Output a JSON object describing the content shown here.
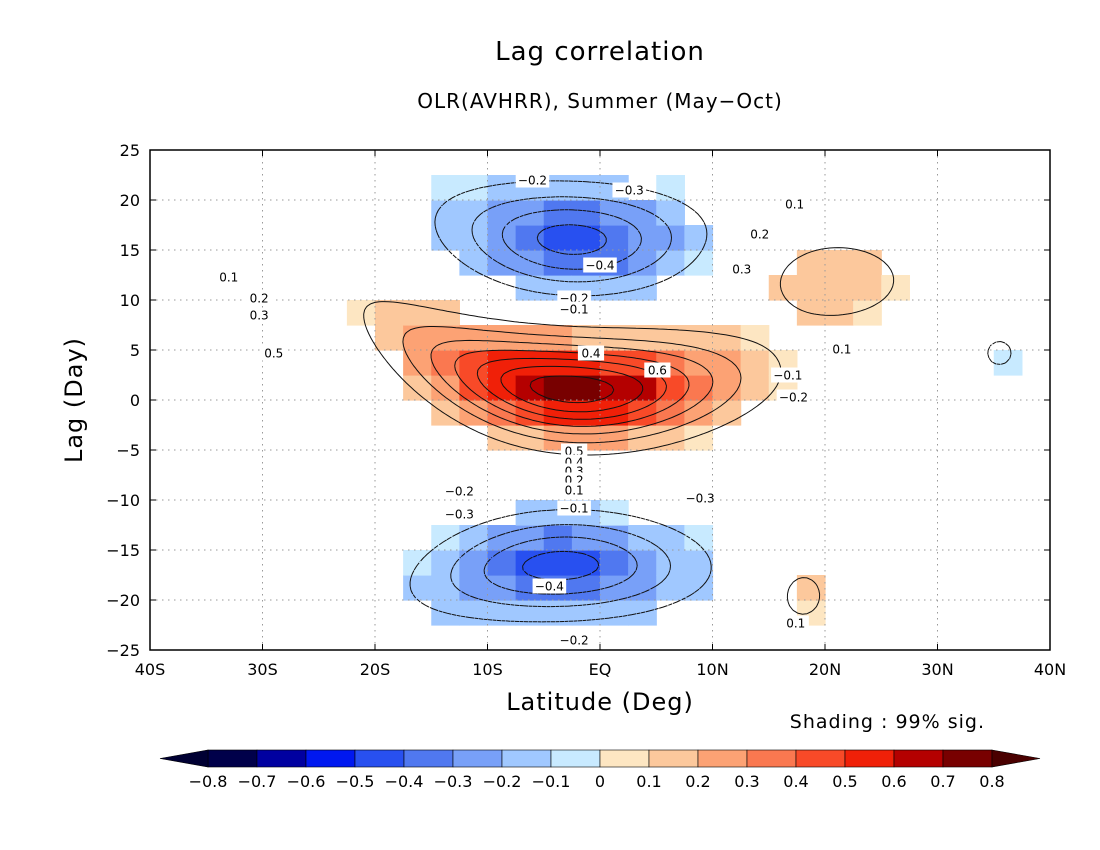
{
  "chart_data": {
    "type": "heatmap",
    "title": "Lag correlation",
    "subtitle": "OLR(AVHRR), Summer (May−Oct)",
    "xlabel": "Latitude (Deg)",
    "ylabel": "Lag (Day)",
    "xlim": [
      -40,
      40
    ],
    "ylim": [
      -25,
      25
    ],
    "x_ticks": [
      {
        "value": -40,
        "label": "40S"
      },
      {
        "value": -30,
        "label": "30S"
      },
      {
        "value": -20,
        "label": "20S"
      },
      {
        "value": -10,
        "label": "10S"
      },
      {
        "value": 0,
        "label": "EQ"
      },
      {
        "value": 10,
        "label": "10N"
      },
      {
        "value": 20,
        "label": "20N"
      },
      {
        "value": 30,
        "label": "30N"
      },
      {
        "value": 40,
        "label": "40N"
      }
    ],
    "y_ticks": [
      {
        "value": 25,
        "label": "25"
      },
      {
        "value": 20,
        "label": "20"
      },
      {
        "value": 15,
        "label": "15"
      },
      {
        "value": 10,
        "label": "10"
      },
      {
        "value": 5,
        "label": "5"
      },
      {
        "value": 0,
        "label": "0"
      },
      {
        "value": -5,
        "label": "−5"
      },
      {
        "value": -10,
        "label": "−10"
      },
      {
        "value": -15,
        "label": "−15"
      },
      {
        "value": -20,
        "label": "−20"
      },
      {
        "value": -25,
        "label": "−25"
      }
    ],
    "grid": true,
    "shading_note": "Shading : 99% sig.",
    "colorbar": {
      "bounds": [
        -0.8,
        -0.7,
        -0.6,
        -0.5,
        -0.4,
        -0.3,
        -0.2,
        -0.1,
        0,
        0.1,
        0.2,
        0.3,
        0.4,
        0.5,
        0.6,
        0.7,
        0.8
      ],
      "labels": [
        "−0.8",
        "−0.7",
        "−0.6",
        "−0.5",
        "−0.4",
        "−0.3",
        "−0.2",
        "−0.1",
        "0",
        "0.1",
        "0.2",
        "0.3",
        "0.4",
        "0.5",
        "0.6",
        "0.7",
        "0.8"
      ],
      "colors": [
        "#00004a",
        "#0000a0",
        "#0018f0",
        "#2850f0",
        "#5078f0",
        "#78a0f8",
        "#a0c8ff",
        "#c8eaff",
        "#fde6c2",
        "#fcc89c",
        "#fca274",
        "#fa7850",
        "#f84a28",
        "#f02008",
        "#b40000",
        "#780000"
      ],
      "under_color": "#000033",
      "over_color": "#4a0000"
    },
    "features": [
      {
        "kind": "positive",
        "name": "main positive band",
        "center_lat": -2,
        "center_lag": 0,
        "peak_value": 0.7,
        "contour_levels": [
          0.1,
          0.2,
          0.3,
          0.4,
          0.5,
          0.6
        ]
      },
      {
        "kind": "negative",
        "name": "upper negative lobe",
        "center_lat": -3,
        "center_lag": 16,
        "peak_value": -0.4,
        "contour_levels": [
          -0.1,
          -0.2,
          -0.3,
          -0.4
        ]
      },
      {
        "kind": "negative",
        "name": "lower negative lobe",
        "center_lat": -3,
        "center_lag": -17,
        "peak_value": -0.4,
        "contour_levels": [
          -0.1,
          -0.2,
          -0.3,
          -0.4
        ]
      },
      {
        "kind": "positive",
        "name": "small positive cell",
        "center_lat": 18,
        "center_lag": -19,
        "peak_value": 0.1,
        "contour_levels": [
          0.1
        ]
      }
    ],
    "contour_labels": [
      {
        "lat": -33.0,
        "lag": 12.3,
        "text": "0.1"
      },
      {
        "lat": -30.3,
        "lag": 10.2,
        "text": "0.2"
      },
      {
        "lat": -30.3,
        "lag": 8.5,
        "text": "0.3"
      },
      {
        "lat": -29.0,
        "lag": 4.7,
        "text": "0.5"
      },
      {
        "lat": -0.8,
        "lag": 4.7,
        "text": "0.4"
      },
      {
        "lat": 5.1,
        "lag": 3.0,
        "text": "0.6"
      },
      {
        "lat": -2.3,
        "lag": -5.1,
        "text": "0.5"
      },
      {
        "lat": -2.3,
        "lag": -6.2,
        "text": "0.4"
      },
      {
        "lat": -2.3,
        "lag": -7.1,
        "text": "0.3"
      },
      {
        "lat": -2.3,
        "lag": -8.0,
        "text": "0.2"
      },
      {
        "lat": -2.3,
        "lag": -9.0,
        "text": "0.1"
      },
      {
        "lat": 17.3,
        "lag": 19.6,
        "text": "0.1"
      },
      {
        "lat": 14.2,
        "lag": 16.6,
        "text": "0.2"
      },
      {
        "lat": 12.6,
        "lag": 13.1,
        "text": "0.3"
      },
      {
        "lat": 21.5,
        "lag": 5.1,
        "text": "0.1"
      },
      {
        "lat": 17.4,
        "lag": -22.3,
        "text": "0.1"
      },
      {
        "lat": -6.0,
        "lag": 22.0,
        "text": "−0.2"
      },
      {
        "lat": 2.6,
        "lag": 21.0,
        "text": "−0.3"
      },
      {
        "lat": 0.0,
        "lag": 13.5,
        "text": "−0.4"
      },
      {
        "lat": -2.3,
        "lag": 10.2,
        "text": "−0.2"
      },
      {
        "lat": -2.3,
        "lag": 9.1,
        "text": "−0.1"
      },
      {
        "lat": 16.7,
        "lag": 2.5,
        "text": "−0.1"
      },
      {
        "lat": 17.2,
        "lag": 0.3,
        "text": "−0.2"
      },
      {
        "lat": -12.5,
        "lag": -9.1,
        "text": "−0.2"
      },
      {
        "lat": -12.5,
        "lag": -11.4,
        "text": "−0.3"
      },
      {
        "lat": -2.3,
        "lag": -10.8,
        "text": "−0.1"
      },
      {
        "lat": 8.9,
        "lag": -9.8,
        "text": "−0.3"
      },
      {
        "lat": -4.5,
        "lag": -18.6,
        "text": "−0.4"
      },
      {
        "lat": -2.3,
        "lag": -24.0,
        "text": "−0.2"
      }
    ]
  }
}
